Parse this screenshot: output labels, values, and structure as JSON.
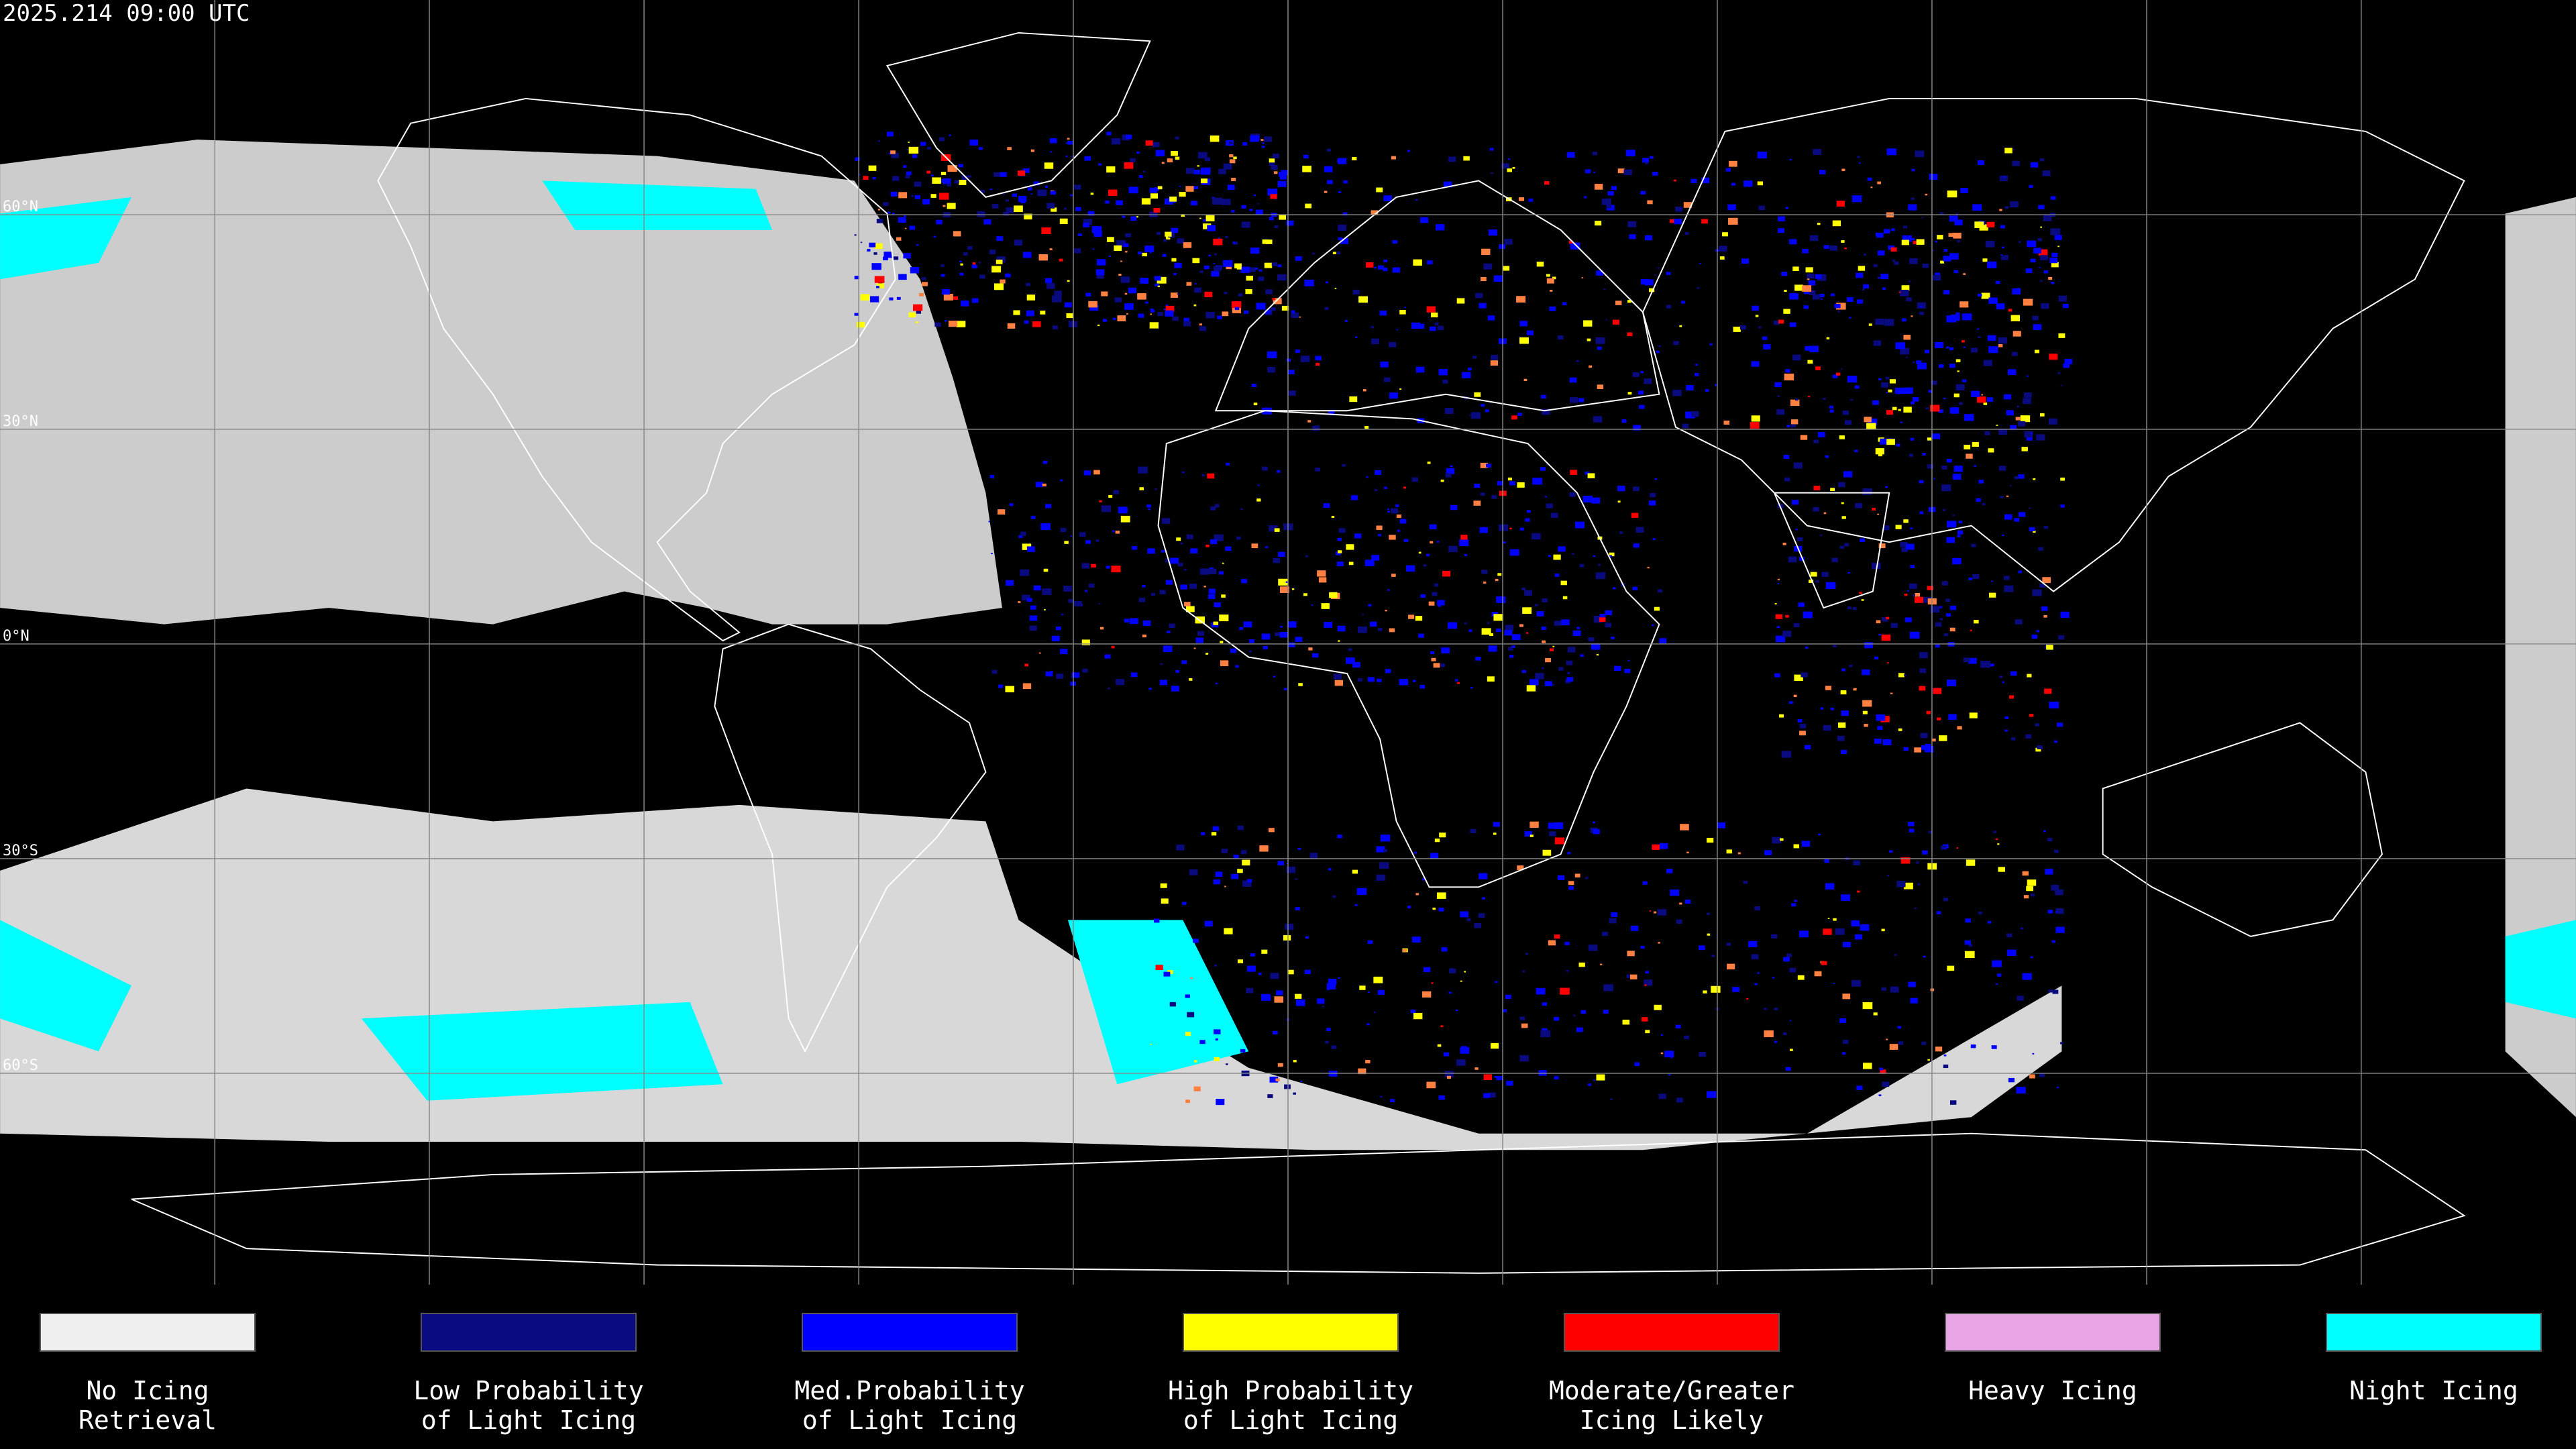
{
  "header": {
    "timestamp": "2025.214 09:00 UTC"
  },
  "map": {
    "latitude_labels": [
      "60°N",
      "30°N",
      "0°N",
      "30°S",
      "60°S"
    ]
  },
  "legend": {
    "items": [
      {
        "label": [
          "No Icing",
          "Retrieval"
        ],
        "color": "#f0f0f0"
      },
      {
        "label": [
          "Low Probability",
          "of Light Icing"
        ],
        "color": "#0a0a80"
      },
      {
        "label": [
          "Med.Probability",
          "of Light Icing"
        ],
        "color": "#0000ff"
      },
      {
        "label": [
          "High Probability",
          "of Light Icing"
        ],
        "color": "#ffff00"
      },
      {
        "label": [
          "Moderate/Greater",
          "Icing Likely"
        ],
        "color": "#ff0000"
      },
      {
        "label": [
          "Heavy Icing"
        ],
        "color": "#e8a4e4"
      },
      {
        "label": [
          "Night Icing"
        ],
        "color": "#00ffff"
      }
    ]
  }
}
